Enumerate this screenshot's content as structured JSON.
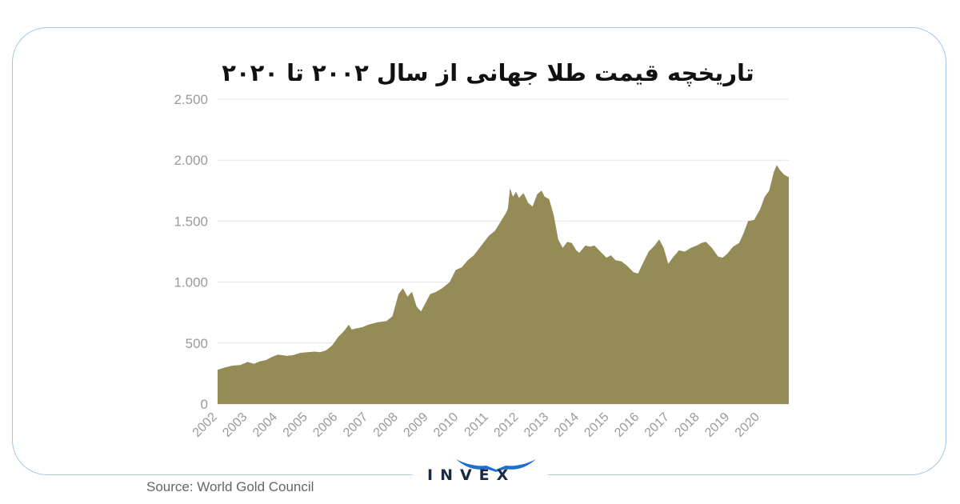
{
  "title": "تاریخچه قیمت طلا جهانی از سال ۲۰۰۲ تا ۲۰۲۰",
  "source": "Source: World Gold Council",
  "brand": {
    "name": "INVEX",
    "color": "#1a2a44",
    "accent": "#1f6fd1"
  },
  "colors": {
    "area_fill": "#948b56",
    "border": "#9ec8ec",
    "grid": "#e4e4e4",
    "axis_text": "#9a9a9a"
  },
  "chart_data": {
    "type": "area",
    "title": "تاریخچه قیمت طلا جهانی از سال ۲۰۰۲ تا ۲۰۲۰",
    "xlabel": "",
    "ylabel": "",
    "ylim": [
      0,
      2500
    ],
    "xlim": [
      2002.0,
      2020.95
    ],
    "y_ticks": [
      0,
      500,
      1000,
      1500,
      2000,
      2500
    ],
    "y_tick_labels": [
      "0",
      "500",
      "1.000",
      "1.500",
      "2.000",
      "2.500"
    ],
    "x_ticks": [
      2002,
      2003,
      2004,
      2005,
      2006,
      2007,
      2008,
      2009,
      2010,
      2011,
      2012,
      2013,
      2014,
      2015,
      2016,
      2017,
      2018,
      2019,
      2020
    ],
    "x_tick_labels": [
      "2002",
      "2003",
      "2004",
      "2005",
      "2006",
      "2007",
      "2008",
      "2009",
      "2010",
      "2011",
      "2012",
      "2013",
      "2014",
      "2015",
      "2016",
      "2017",
      "2018",
      "2019",
      "2020"
    ],
    "grid": true,
    "legend": "none",
    "series": [
      {
        "x": [
          2002.0,
          2002.25,
          2002.5,
          2002.75,
          2003.0,
          2003.2,
          2003.4,
          2003.6,
          2003.8,
          2004.0,
          2004.3,
          2004.5,
          2004.75,
          2005.0,
          2005.2,
          2005.4,
          2005.6,
          2005.8,
          2006.0,
          2006.2,
          2006.35,
          2006.45,
          2006.6,
          2006.8,
          2007.0,
          2007.3,
          2007.6,
          2007.8,
          2008.0,
          2008.15,
          2008.3,
          2008.45,
          2008.6,
          2008.75,
          2008.9,
          2009.05,
          2009.25,
          2009.45,
          2009.7,
          2009.9,
          2010.1,
          2010.3,
          2010.5,
          2010.75,
          2011.0,
          2011.2,
          2011.4,
          2011.55,
          2011.63,
          2011.7,
          2011.8,
          2011.9,
          2012.0,
          2012.15,
          2012.3,
          2012.45,
          2012.6,
          2012.75,
          2012.85,
          2013.0,
          2013.15,
          2013.3,
          2013.45,
          2013.6,
          2013.75,
          2013.9,
          2014.0,
          2014.2,
          2014.35,
          2014.5,
          2014.7,
          2014.9,
          2015.05,
          2015.2,
          2015.4,
          2015.6,
          2015.8,
          2015.95,
          2016.1,
          2016.3,
          2016.5,
          2016.65,
          2016.8,
          2016.95,
          2017.1,
          2017.3,
          2017.5,
          2017.7,
          2017.9,
          2018.05,
          2018.2,
          2018.4,
          2018.6,
          2018.75,
          2018.9,
          2019.1,
          2019.3,
          2019.45,
          2019.6,
          2019.8,
          2020.0,
          2020.15,
          2020.3,
          2020.45,
          2020.55,
          2020.65,
          2020.8,
          2020.95
        ],
        "values": [
          280,
          300,
          315,
          320,
          345,
          330,
          350,
          360,
          385,
          405,
          395,
          400,
          420,
          425,
          430,
          425,
          440,
          480,
          550,
          600,
          650,
          610,
          620,
          630,
          650,
          670,
          680,
          720,
          900,
          950,
          880,
          920,
          800,
          760,
          830,
          900,
          920,
          950,
          1000,
          1100,
          1120,
          1180,
          1220,
          1300,
          1380,
          1420,
          1500,
          1560,
          1600,
          1770,
          1700,
          1740,
          1690,
          1730,
          1650,
          1620,
          1720,
          1750,
          1700,
          1680,
          1550,
          1350,
          1280,
          1330,
          1320,
          1260,
          1240,
          1300,
          1290,
          1300,
          1250,
          1200,
          1220,
          1180,
          1170,
          1130,
          1080,
          1070,
          1150,
          1250,
          1300,
          1350,
          1280,
          1150,
          1200,
          1260,
          1250,
          1280,
          1300,
          1320,
          1330,
          1280,
          1210,
          1200,
          1230,
          1290,
          1320,
          1400,
          1500,
          1510,
          1600,
          1700,
          1750,
          1900,
          1960,
          1920,
          1880,
          1860
        ]
      }
    ]
  }
}
